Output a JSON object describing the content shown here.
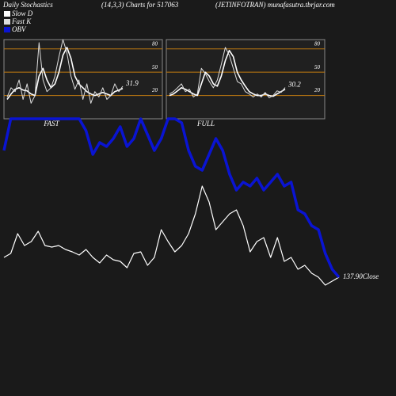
{
  "header": {
    "left": "Daily Stochastics",
    "middle": "(14,3,3) Charts for 517063",
    "right": "(JETINFOTRAN) munafasutra.tbrjar.com"
  },
  "chart_data": [
    {
      "type": "line",
      "label": "FAST",
      "ylim": [
        -10,
        92
      ],
      "yticks": [
        20,
        50,
        80
      ],
      "tick_color": "#c07a10",
      "series": [
        {
          "name": "Slow D",
          "color": "#ffffff",
          "values": [
            15,
            22,
            28,
            30,
            27,
            26,
            22,
            20,
            45,
            55,
            40,
            30,
            35,
            50,
            72,
            82,
            68,
            45,
            35,
            30,
            25,
            22,
            20,
            22,
            24,
            22,
            20,
            25,
            27,
            29
          ]
        },
        {
          "name": "Fast K",
          "color": "#dddddd",
          "values": [
            18,
            30,
            25,
            40,
            15,
            35,
            10,
            20,
            88,
            40,
            25,
            30,
            45,
            70,
            92,
            75,
            45,
            28,
            40,
            15,
            35,
            10,
            25,
            18,
            30,
            15,
            20,
            35,
            25,
            31.9
          ]
        }
      ]
    },
    {
      "type": "line",
      "label": "FULL",
      "ylim": [
        -10,
        92
      ],
      "yticks": [
        20,
        50,
        80
      ],
      "tick_color": "#c07a10",
      "series": [
        {
          "color": "#ffffff",
          "values": [
            20,
            22,
            26,
            30,
            28,
            25,
            22,
            20,
            35,
            50,
            45,
            35,
            32,
            45,
            65,
            78,
            70,
            50,
            40,
            32,
            25,
            22,
            20,
            20,
            22,
            20,
            19,
            22,
            25,
            28
          ]
        },
        {
          "color": "#dddddd",
          "values": [
            22,
            25,
            30,
            35,
            25,
            28,
            18,
            22,
            55,
            48,
            38,
            30,
            40,
            60,
            82,
            72,
            55,
            38,
            35,
            25,
            22,
            18,
            22,
            18,
            24,
            17,
            20,
            26,
            24,
            30.2
          ]
        }
      ]
    },
    {
      "type": "line",
      "ylim": [
        0,
        230
      ],
      "annotation": "137.90Close",
      "series": [
        {
          "color": "#ffffff",
          "values": [
            55,
            60,
            85,
            70,
            75,
            88,
            70,
            68,
            70,
            65,
            62,
            58,
            65,
            55,
            48,
            58,
            52,
            50,
            42,
            60,
            62,
            45,
            55,
            90,
            75,
            62,
            70,
            85,
            110,
            145,
            125,
            90,
            100,
            110,
            115,
            95,
            62,
            75,
            80,
            55,
            80,
            50,
            55,
            40,
            45,
            35,
            30,
            20,
            25,
            30
          ]
        },
        {
          "name": "OBV",
          "color": "#0a14d2",
          "values": [
            190,
            230,
            230,
            230,
            230,
            230,
            230,
            230,
            230,
            230,
            230,
            230,
            215,
            185,
            200,
            195,
            205,
            220,
            195,
            205,
            230,
            210,
            190,
            205,
            230,
            230,
            225,
            190,
            170,
            165,
            185,
            205,
            190,
            160,
            140,
            150,
            145,
            155,
            140,
            150,
            160,
            145,
            150,
            115,
            110,
            95,
            90,
            60,
            40,
            30
          ]
        }
      ]
    }
  ]
}
